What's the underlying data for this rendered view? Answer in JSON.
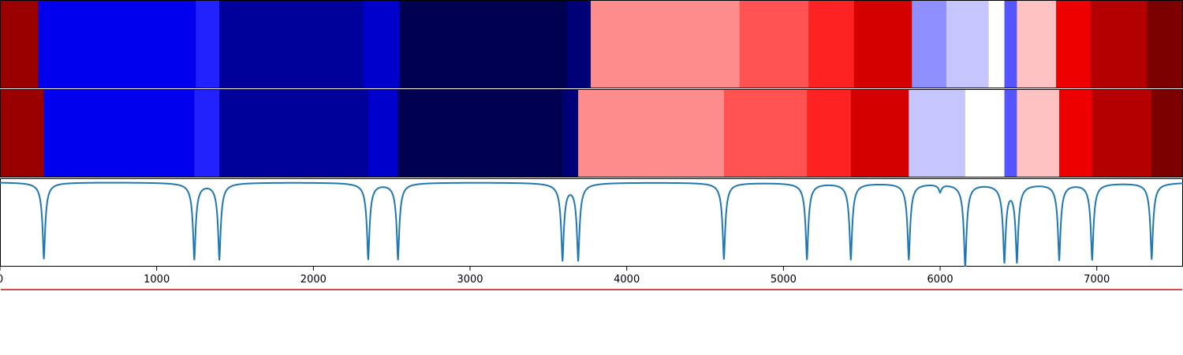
{
  "chart_data": {
    "type": "heatmap",
    "title": "",
    "xlabel": "",
    "ylabel": "",
    "xlim": [
      0,
      7550
    ],
    "x_ticks": [
      0,
      1000,
      2000,
      3000,
      4000,
      5000,
      6000,
      7000
    ],
    "x_tick_labels": [
      "0",
      "1000",
      "2000",
      "3000",
      "4000",
      "5000",
      "6000",
      "7000"
    ],
    "rows": [
      {
        "segments": [
          {
            "start": 0,
            "end": 245,
            "color": "#9a0000"
          },
          {
            "start": 245,
            "end": 1250,
            "color": "#0000ee"
          },
          {
            "start": 1250,
            "end": 1400,
            "color": "#2222ff"
          },
          {
            "start": 1400,
            "end": 2320,
            "color": "#00009a"
          },
          {
            "start": 2320,
            "end": 2550,
            "color": "#0000cc"
          },
          {
            "start": 2550,
            "end": 3620,
            "color": "#000050"
          },
          {
            "start": 3620,
            "end": 3770,
            "color": "#000077"
          },
          {
            "start": 3770,
            "end": 4720,
            "color": "#ff8c8c"
          },
          {
            "start": 4720,
            "end": 5160,
            "color": "#ff5252"
          },
          {
            "start": 5160,
            "end": 5450,
            "color": "#ff2222"
          },
          {
            "start": 5450,
            "end": 5820,
            "color": "#d40000"
          },
          {
            "start": 5820,
            "end": 6040,
            "color": "#8f8fff"
          },
          {
            "start": 6040,
            "end": 6310,
            "color": "#c6c6ff"
          },
          {
            "start": 6310,
            "end": 6410,
            "color": "#ffffff"
          },
          {
            "start": 6410,
            "end": 6490,
            "color": "#5555ff"
          },
          {
            "start": 6490,
            "end": 6740,
            "color": "#ffc2c2"
          },
          {
            "start": 6740,
            "end": 6960,
            "color": "#ee0000"
          },
          {
            "start": 6960,
            "end": 7320,
            "color": "#b40000"
          },
          {
            "start": 7320,
            "end": 7550,
            "color": "#7c0000"
          }
        ]
      },
      {
        "segments": [
          {
            "start": 0,
            "end": 280,
            "color": "#9a0000"
          },
          {
            "start": 280,
            "end": 1240,
            "color": "#0000ee"
          },
          {
            "start": 1240,
            "end": 1400,
            "color": "#2222ff"
          },
          {
            "start": 1400,
            "end": 2350,
            "color": "#00009a"
          },
          {
            "start": 2350,
            "end": 2540,
            "color": "#0000cc"
          },
          {
            "start": 2540,
            "end": 3590,
            "color": "#000050"
          },
          {
            "start": 3590,
            "end": 3690,
            "color": "#000077"
          },
          {
            "start": 3690,
            "end": 4620,
            "color": "#ff8c8c"
          },
          {
            "start": 4620,
            "end": 5150,
            "color": "#ff5252"
          },
          {
            "start": 5150,
            "end": 5430,
            "color": "#ff2222"
          },
          {
            "start": 5430,
            "end": 5800,
            "color": "#d40000"
          },
          {
            "start": 5800,
            "end": 6160,
            "color": "#c6c6ff"
          },
          {
            "start": 6160,
            "end": 6410,
            "color": "#ffffff"
          },
          {
            "start": 6410,
            "end": 6490,
            "color": "#5555ff"
          },
          {
            "start": 6490,
            "end": 6760,
            "color": "#ffc2c2"
          },
          {
            "start": 6760,
            "end": 6970,
            "color": "#ee0000"
          },
          {
            "start": 6970,
            "end": 7350,
            "color": "#b40000"
          },
          {
            "start": 7350,
            "end": 7550,
            "color": "#7c0000"
          }
        ]
      }
    ],
    "signal": {
      "color": "#1f77b4",
      "baseline": 0,
      "ylim": [
        -1.1,
        0.05
      ],
      "dips": [
        {
          "x": 280,
          "depth": 1.0
        },
        {
          "x": 1240,
          "depth": 1.0
        },
        {
          "x": 1400,
          "depth": 1.0
        },
        {
          "x": 2350,
          "depth": 1.0
        },
        {
          "x": 2540,
          "depth": 1.0
        },
        {
          "x": 3590,
          "depth": 1.0
        },
        {
          "x": 3690,
          "depth": 1.0
        },
        {
          "x": 4620,
          "depth": 1.0
        },
        {
          "x": 5150,
          "depth": 1.0
        },
        {
          "x": 5430,
          "depth": 1.0
        },
        {
          "x": 5800,
          "depth": 1.0
        },
        {
          "x": 6000,
          "depth": 0.1
        },
        {
          "x": 6160,
          "depth": 1.1
        },
        {
          "x": 6410,
          "depth": 1.0
        },
        {
          "x": 6490,
          "depth": 1.0
        },
        {
          "x": 6760,
          "depth": 1.0
        },
        {
          "x": 6970,
          "depth": 1.0
        },
        {
          "x": 7350,
          "depth": 1.0
        }
      ]
    },
    "threshold": {
      "value": -1.4,
      "color": "#ee1111"
    }
  }
}
